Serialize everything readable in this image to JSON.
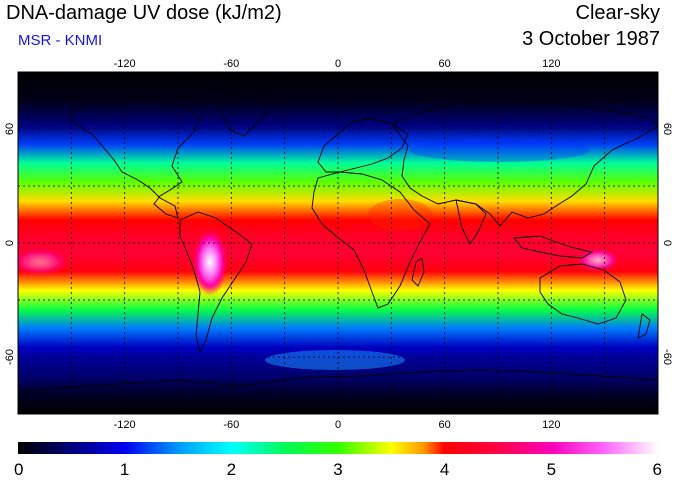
{
  "header": {
    "title": "DNA-damage UV dose (kJ/m2)",
    "subtitle": "MSR - KNMI",
    "mode": "Clear-sky",
    "date": "3 October 1987"
  },
  "map": {
    "projection": "equirectangular",
    "lon_range": [
      -180,
      180
    ],
    "lat_range": [
      -90,
      90
    ],
    "lon_ticks": [
      "-120",
      "-60",
      "0",
      "60",
      "120"
    ],
    "lat_ticks": [
      "60",
      "0",
      "-60"
    ],
    "lon_grid": [
      -150,
      -120,
      -90,
      -60,
      -30,
      0,
      30,
      60,
      90,
      120,
      150
    ],
    "lat_grid": [
      60,
      30,
      0,
      -30,
      -60
    ],
    "band_profile": [
      {
        "lat": 90,
        "value": 0.0
      },
      {
        "lat": 75,
        "value": 0.1
      },
      {
        "lat": 62,
        "value": 0.5
      },
      {
        "lat": 52,
        "value": 1.2
      },
      {
        "lat": 42,
        "value": 2.3
      },
      {
        "lat": 32,
        "value": 3.1
      },
      {
        "lat": 22,
        "value": 3.6
      },
      {
        "lat": 12,
        "value": 4.0
      },
      {
        "lat": 3,
        "value": 4.3
      },
      {
        "lat": -5,
        "value": 4.4
      },
      {
        "lat": -15,
        "value": 4.1
      },
      {
        "lat": -25,
        "value": 3.5
      },
      {
        "lat": -35,
        "value": 2.6
      },
      {
        "lat": -45,
        "value": 1.4
      },
      {
        "lat": -55,
        "value": 0.8
      },
      {
        "lat": -62,
        "value": 0.6
      },
      {
        "lat": -72,
        "value": 0.4
      },
      {
        "lat": -80,
        "value": 0.15
      },
      {
        "lat": -90,
        "value": 0.0
      }
    ]
  },
  "colorbar": {
    "min": 0,
    "max": 6,
    "tick_labels": [
      "0",
      "1",
      "2",
      "3",
      "4",
      "5",
      "6"
    ],
    "stops": [
      {
        "value": 0.0,
        "color": "#000000"
      },
      {
        "value": 0.5,
        "color": "#00007a"
      },
      {
        "value": 1.0,
        "color": "#0000f0"
      },
      {
        "value": 1.5,
        "color": "#0099ff"
      },
      {
        "value": 2.0,
        "color": "#00ffff"
      },
      {
        "value": 2.5,
        "color": "#00ff55"
      },
      {
        "value": 3.0,
        "color": "#33ff00"
      },
      {
        "value": 3.5,
        "color": "#ffff00"
      },
      {
        "value": 3.8,
        "color": "#ff9900"
      },
      {
        "value": 4.0,
        "color": "#ff0000"
      },
      {
        "value": 4.5,
        "color": "#ff0044"
      },
      {
        "value": 5.0,
        "color": "#ff00bb"
      },
      {
        "value": 5.5,
        "color": "#ff66ff"
      },
      {
        "value": 6.0,
        "color": "#ffffff"
      }
    ]
  },
  "colors": {
    "subtitle": "#1414e6",
    "coastline": "#000000",
    "grid": "#000000"
  }
}
